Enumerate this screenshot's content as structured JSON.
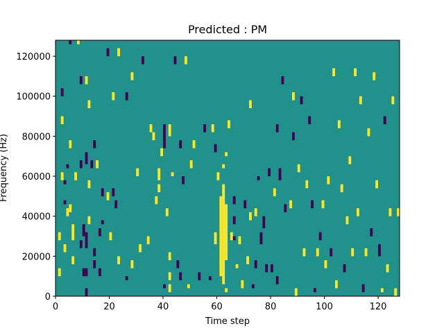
{
  "chart_data": {
    "type": "heatmap",
    "title": "Predicted : PM",
    "xlabel": "Time step",
    "ylabel": "Frequency (Hz)",
    "xlim": [
      0,
      128
    ],
    "ylim": [
      0,
      128000
    ],
    "x_ticks": [
      0,
      20,
      40,
      60,
      80,
      100,
      120
    ],
    "y_ticks": [
      0,
      20000,
      40000,
      60000,
      80000,
      100000,
      120000
    ],
    "x_tick_labels": [
      "0",
      "20",
      "40",
      "60",
      "80",
      "100",
      "120"
    ],
    "y_tick_labels": [
      "0",
      "20000",
      "40000",
      "60000",
      "80000",
      "100000",
      "120000"
    ],
    "grid": false,
    "colormap": "viridis",
    "colors": {
      "background": "#21918c",
      "high": "#fde725",
      "low": "#440154"
    },
    "values_legend": {
      "background": 0,
      "high": 1,
      "low": -1
    },
    "freq_bin_hz": 2000,
    "events": [
      {
        "t": 1,
        "f0": 10000,
        "f1": 14000,
        "v": 1
      },
      {
        "t": 1,
        "f0": 28000,
        "f1": 32000,
        "v": 1
      },
      {
        "t": 2,
        "f0": 58000,
        "f1": 62000,
        "v": 1
      },
      {
        "t": 2,
        "f0": 86000,
        "f1": 90000,
        "v": 1
      },
      {
        "t": 2,
        "f0": 100000,
        "f1": 104000,
        "v": -1
      },
      {
        "t": 3,
        "f0": 22000,
        "f1": 26000,
        "v": 1
      },
      {
        "t": 3,
        "f0": 46000,
        "f1": 48000,
        "v": -1
      },
      {
        "t": 3,
        "f0": 56000,
        "f1": 58000,
        "v": -1
      },
      {
        "t": 4,
        "f0": 40000,
        "f1": 44000,
        "v": 1
      },
      {
        "t": 4,
        "f0": 64000,
        "f1": 66000,
        "v": -1
      },
      {
        "t": 5,
        "f0": 42000,
        "f1": 46000,
        "v": 1
      },
      {
        "t": 5,
        "f0": 74000,
        "f1": 78000,
        "v": 1
      },
      {
        "t": 5,
        "f0": 126000,
        "f1": 128000,
        "v": -1
      },
      {
        "t": 6,
        "f0": 28000,
        "f1": 36000,
        "v": 1
      },
      {
        "t": 6,
        "f0": 16000,
        "f1": 20000,
        "v": 1
      },
      {
        "t": 7,
        "f0": 58000,
        "f1": 62000,
        "v": 1
      },
      {
        "t": 8,
        "f0": 126000,
        "f1": 128000,
        "v": 1
      },
      {
        "t": 9,
        "f0": 24000,
        "f1": 28000,
        "v": -1
      },
      {
        "t": 9,
        "f0": 64000,
        "f1": 68000,
        "v": -1
      },
      {
        "t": 9,
        "f0": 106000,
        "f1": 110000,
        "v": -1
      },
      {
        "t": 10,
        "f0": 10000,
        "f1": 14000,
        "v": -1
      },
      {
        "t": 10,
        "f0": 30000,
        "f1": 36000,
        "v": -1
      },
      {
        "t": 11,
        "f0": 0,
        "f1": 4000,
        "v": -1
      },
      {
        "t": 11,
        "f0": 10000,
        "f1": 14000,
        "v": -1
      },
      {
        "t": 11,
        "f0": 24000,
        "f1": 32000,
        "v": -1
      },
      {
        "t": 11,
        "f0": 66000,
        "f1": 72000,
        "v": -1
      },
      {
        "t": 11,
        "f0": 106000,
        "f1": 110000,
        "v": 1
      },
      {
        "t": 12,
        "f0": 36000,
        "f1": 40000,
        "v": 1
      },
      {
        "t": 12,
        "f0": 54000,
        "f1": 58000,
        "v": 1
      },
      {
        "t": 12,
        "f0": 94000,
        "f1": 98000,
        "v": 1
      },
      {
        "t": 13,
        "f0": 64000,
        "f1": 68000,
        "v": -1
      },
      {
        "t": 14,
        "f0": 14000,
        "f1": 18000,
        "v": -1
      },
      {
        "t": 14,
        "f0": 20000,
        "f1": 24000,
        "v": -1
      },
      {
        "t": 14,
        "f0": 74000,
        "f1": 78000,
        "v": -1
      },
      {
        "t": 15,
        "f0": 64000,
        "f1": 68000,
        "v": 1
      },
      {
        "t": 16,
        "f0": 10000,
        "f1": 14000,
        "v": -1
      },
      {
        "t": 16,
        "f0": 30000,
        "f1": 34000,
        "v": -1
      },
      {
        "t": 17,
        "f0": 36000,
        "f1": 38000,
        "v": -1
      },
      {
        "t": 17,
        "f0": 50000,
        "f1": 54000,
        "v": -1
      },
      {
        "t": 19,
        "f0": 120000,
        "f1": 124000,
        "v": -1
      },
      {
        "t": 19,
        "f0": 48000,
        "f1": 52000,
        "v": 1
      },
      {
        "t": 20,
        "f0": 28000,
        "f1": 32000,
        "v": 1
      },
      {
        "t": 21,
        "f0": 50000,
        "f1": 54000,
        "v": -1
      },
      {
        "t": 21,
        "f0": 98000,
        "f1": 102000,
        "v": 1
      },
      {
        "t": 22,
        "f0": 44000,
        "f1": 48000,
        "v": -1
      },
      {
        "t": 23,
        "f0": 16000,
        "f1": 20000,
        "v": 1
      },
      {
        "t": 23,
        "f0": 120000,
        "f1": 124000,
        "v": 1
      },
      {
        "t": 26,
        "f0": 8000,
        "f1": 10000,
        "v": -1
      },
      {
        "t": 26,
        "f0": 98000,
        "f1": 102000,
        "v": -1
      },
      {
        "t": 28,
        "f0": 14000,
        "f1": 18000,
        "v": 1
      },
      {
        "t": 28,
        "f0": 108000,
        "f1": 112000,
        "v": 1
      },
      {
        "t": 30,
        "f0": 60000,
        "f1": 64000,
        "v": 1
      },
      {
        "t": 31,
        "f0": 22000,
        "f1": 26000,
        "v": 1
      },
      {
        "t": 32,
        "f0": 116000,
        "f1": 120000,
        "v": -1
      },
      {
        "t": 34,
        "f0": 26000,
        "f1": 30000,
        "v": 1
      },
      {
        "t": 35,
        "f0": 82000,
        "f1": 86000,
        "v": 1
      },
      {
        "t": 36,
        "f0": 78000,
        "f1": 82000,
        "v": 1
      },
      {
        "t": 37,
        "f0": 46000,
        "f1": 50000,
        "v": 1
      },
      {
        "t": 38,
        "f0": 52000,
        "f1": 56000,
        "v": 1
      },
      {
        "t": 38,
        "f0": 58000,
        "f1": 64000,
        "v": 1
      },
      {
        "t": 39,
        "f0": 70000,
        "f1": 74000,
        "v": 1
      },
      {
        "t": 40,
        "f0": 74000,
        "f1": 86000,
        "v": -1
      },
      {
        "t": 40,
        "f0": 4000,
        "f1": 6000,
        "v": -1
      },
      {
        "t": 41,
        "f0": 40000,
        "f1": 44000,
        "v": 1
      },
      {
        "t": 42,
        "f0": 2000,
        "f1": 6000,
        "v": 1
      },
      {
        "t": 42,
        "f0": 8000,
        "f1": 12000,
        "v": 1
      },
      {
        "t": 42,
        "f0": 18000,
        "f1": 22000,
        "v": 1
      },
      {
        "t": 42,
        "f0": 80000,
        "f1": 86000,
        "v": 1
      },
      {
        "t": 43,
        "f0": 60000,
        "f1": 62000,
        "v": 1
      },
      {
        "t": 44,
        "f0": 116000,
        "f1": 120000,
        "v": -1
      },
      {
        "t": 45,
        "f0": 14000,
        "f1": 18000,
        "v": -1
      },
      {
        "t": 46,
        "f0": 8000,
        "f1": 12000,
        "v": -1
      },
      {
        "t": 46,
        "f0": 74000,
        "f1": 78000,
        "v": -1
      },
      {
        "t": 47,
        "f0": 56000,
        "f1": 60000,
        "v": -1
      },
      {
        "t": 48,
        "f0": 116000,
        "f1": 120000,
        "v": 1
      },
      {
        "t": 49,
        "f0": 4000,
        "f1": 6000,
        "v": 1
      },
      {
        "t": 50,
        "f0": 64000,
        "f1": 68000,
        "v": 1
      },
      {
        "t": 51,
        "f0": 74000,
        "f1": 78000,
        "v": 1
      },
      {
        "t": 53,
        "f0": 8000,
        "f1": 12000,
        "v": -1
      },
      {
        "t": 55,
        "f0": 82000,
        "f1": 86000,
        "v": -1
      },
      {
        "t": 57,
        "f0": 8000,
        "f1": 10000,
        "v": -1
      },
      {
        "t": 58,
        "f0": 82000,
        "f1": 86000,
        "v": 1
      },
      {
        "t": 59,
        "f0": 26000,
        "f1": 32000,
        "v": 1
      },
      {
        "t": 59,
        "f0": 72000,
        "f1": 76000,
        "v": -1
      },
      {
        "t": 60,
        "f0": 58000,
        "f1": 62000,
        "v": 1
      },
      {
        "t": 61,
        "f0": 10000,
        "f1": 50000,
        "v": 1
      },
      {
        "t": 62,
        "f0": 6000,
        "f1": 56000,
        "v": 1
      },
      {
        "t": 62,
        "f0": 64000,
        "f1": 66000,
        "v": 1
      },
      {
        "t": 63,
        "f0": 2000,
        "f1": 4000,
        "v": 1
      },
      {
        "t": 63,
        "f0": 18000,
        "f1": 46000,
        "v": 1
      },
      {
        "t": 63,
        "f0": 70000,
        "f1": 72000,
        "v": 1
      },
      {
        "t": 64,
        "f0": 84000,
        "f1": 88000,
        "v": 1
      },
      {
        "t": 65,
        "f0": 28000,
        "f1": 32000,
        "v": 1
      },
      {
        "t": 66,
        "f0": 28000,
        "f1": 30000,
        "v": -1
      },
      {
        "t": 66,
        "f0": 36000,
        "f1": 40000,
        "v": -1
      },
      {
        "t": 66,
        "f0": 46000,
        "f1": 50000,
        "v": -1
      },
      {
        "t": 67,
        "f0": 14000,
        "f1": 16000,
        "v": 1
      },
      {
        "t": 68,
        "f0": 26000,
        "f1": 30000,
        "v": 1
      },
      {
        "t": 69,
        "f0": 4000,
        "f1": 8000,
        "v": 1
      },
      {
        "t": 70,
        "f0": 44000,
        "f1": 48000,
        "v": -1
      },
      {
        "t": 71,
        "f0": 16000,
        "f1": 20000,
        "v": 1
      },
      {
        "t": 72,
        "f0": 38000,
        "f1": 42000,
        "v": 1
      },
      {
        "t": 72,
        "f0": 94000,
        "f1": 98000,
        "v": 1
      },
      {
        "t": 73,
        "f0": 4000,
        "f1": 6000,
        "v": -1
      },
      {
        "t": 74,
        "f0": 14000,
        "f1": 18000,
        "v": -1
      },
      {
        "t": 74,
        "f0": 40000,
        "f1": 44000,
        "v": 1
      },
      {
        "t": 75,
        "f0": 58000,
        "f1": 60000,
        "v": -1
      },
      {
        "t": 76,
        "f0": 26000,
        "f1": 32000,
        "v": -1
      },
      {
        "t": 77,
        "f0": 34000,
        "f1": 40000,
        "v": -1
      },
      {
        "t": 78,
        "f0": 12000,
        "f1": 16000,
        "v": -1
      },
      {
        "t": 79,
        "f0": 60000,
        "f1": 64000,
        "v": -1
      },
      {
        "t": 80,
        "f0": 12000,
        "f1": 16000,
        "v": -1
      },
      {
        "t": 81,
        "f0": 50000,
        "f1": 54000,
        "v": 1
      },
      {
        "t": 82,
        "f0": 6000,
        "f1": 10000,
        "v": -1
      },
      {
        "t": 82,
        "f0": 82000,
        "f1": 86000,
        "v": -1
      },
      {
        "t": 83,
        "f0": 58000,
        "f1": 64000,
        "v": -1
      },
      {
        "t": 84,
        "f0": 106000,
        "f1": 110000,
        "v": -1
      },
      {
        "t": 85,
        "f0": 42000,
        "f1": 46000,
        "v": -1
      },
      {
        "t": 87,
        "f0": 44000,
        "f1": 48000,
        "v": 1
      },
      {
        "t": 88,
        "f0": 78000,
        "f1": 82000,
        "v": -1
      },
      {
        "t": 88,
        "f0": 98000,
        "f1": 102000,
        "v": 1
      },
      {
        "t": 89,
        "f0": 0,
        "f1": 4000,
        "v": 1
      },
      {
        "t": 90,
        "f0": 62000,
        "f1": 66000,
        "v": 1
      },
      {
        "t": 91,
        "f0": 96000,
        "f1": 100000,
        "v": -1
      },
      {
        "t": 92,
        "f0": 20000,
        "f1": 24000,
        "v": 1
      },
      {
        "t": 93,
        "f0": 54000,
        "f1": 58000,
        "v": 1
      },
      {
        "t": 94,
        "f0": 86000,
        "f1": 90000,
        "v": -1
      },
      {
        "t": 95,
        "f0": 44000,
        "f1": 48000,
        "v": -1
      },
      {
        "t": 96,
        "f0": 2000,
        "f1": 4000,
        "v": -1
      },
      {
        "t": 97,
        "f0": 20000,
        "f1": 24000,
        "v": 1
      },
      {
        "t": 98,
        "f0": 28000,
        "f1": 32000,
        "v": -1
      },
      {
        "t": 99,
        "f0": 44000,
        "f1": 48000,
        "v": 1
      },
      {
        "t": 100,
        "f0": 14000,
        "f1": 18000,
        "v": 1
      },
      {
        "t": 101,
        "f0": 56000,
        "f1": 60000,
        "v": 1
      },
      {
        "t": 102,
        "f0": 20000,
        "f1": 24000,
        "v": -1
      },
      {
        "t": 103,
        "f0": 110000,
        "f1": 114000,
        "v": 1
      },
      {
        "t": 104,
        "f0": 4000,
        "f1": 8000,
        "v": 1
      },
      {
        "t": 105,
        "f0": 84000,
        "f1": 88000,
        "v": 1
      },
      {
        "t": 106,
        "f0": 52000,
        "f1": 56000,
        "v": 1
      },
      {
        "t": 107,
        "f0": 12000,
        "f1": 16000,
        "v": -1
      },
      {
        "t": 108,
        "f0": 36000,
        "f1": 40000,
        "v": 1
      },
      {
        "t": 109,
        "f0": 66000,
        "f1": 70000,
        "v": 1
      },
      {
        "t": 110,
        "f0": 20000,
        "f1": 24000,
        "v": 1
      },
      {
        "t": 111,
        "f0": 110000,
        "f1": 114000,
        "v": 1
      },
      {
        "t": 112,
        "f0": 40000,
        "f1": 44000,
        "v": 1
      },
      {
        "t": 113,
        "f0": 96000,
        "f1": 100000,
        "v": 1
      },
      {
        "t": 114,
        "f0": 2000,
        "f1": 6000,
        "v": -1
      },
      {
        "t": 115,
        "f0": 20000,
        "f1": 24000,
        "v": 1
      },
      {
        "t": 116,
        "f0": 80000,
        "f1": 84000,
        "v": 1
      },
      {
        "t": 117,
        "f0": 30000,
        "f1": 34000,
        "v": -1
      },
      {
        "t": 118,
        "f0": 108000,
        "f1": 112000,
        "v": 1
      },
      {
        "t": 119,
        "f0": 54000,
        "f1": 58000,
        "v": 1
      },
      {
        "t": 120,
        "f0": 20000,
        "f1": 26000,
        "v": -1
      },
      {
        "t": 121,
        "f0": 2000,
        "f1": 4000,
        "v": 1
      },
      {
        "t": 122,
        "f0": 86000,
        "f1": 90000,
        "v": -1
      },
      {
        "t": 123,
        "f0": 12000,
        "f1": 16000,
        "v": 1
      },
      {
        "t": 124,
        "f0": 40000,
        "f1": 44000,
        "v": 1
      },
      {
        "t": 125,
        "f0": 96000,
        "f1": 100000,
        "v": 1
      },
      {
        "t": 126,
        "f0": 0,
        "f1": 4000,
        "v": 1
      },
      {
        "t": 127,
        "f0": 40000,
        "f1": 44000,
        "v": 1
      }
    ]
  }
}
